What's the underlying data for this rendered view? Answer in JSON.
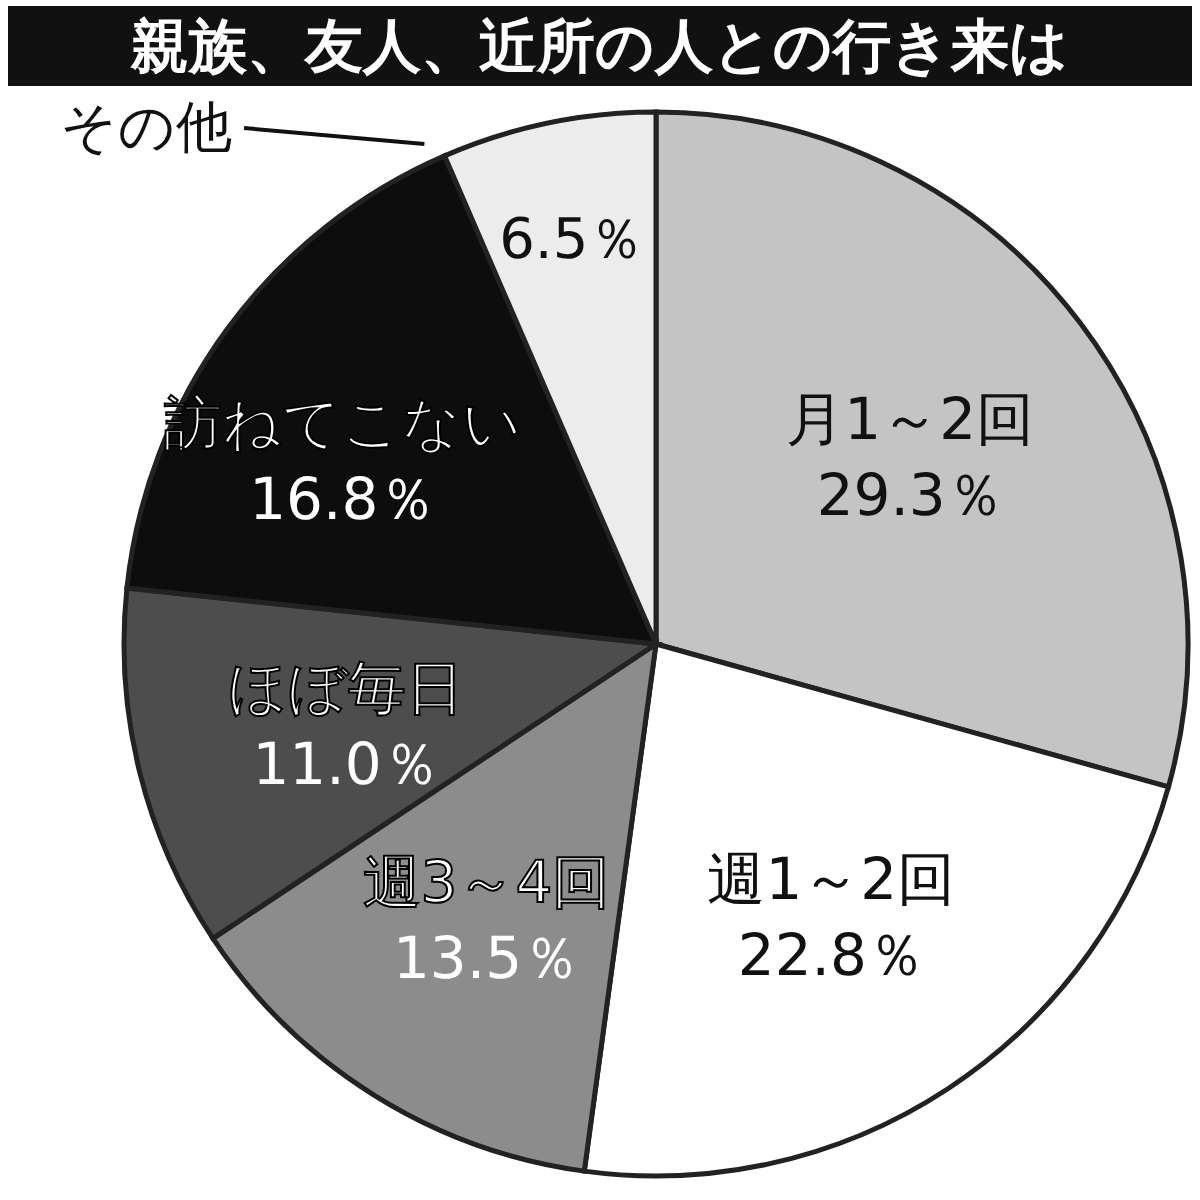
{
  "chart_data": {
    "type": "pie",
    "title": "親族、友人、近所の人との行き来は",
    "categories": [
      "月1～2回",
      "週1～2回",
      "週3～4回",
      "ほぼ毎日",
      "訪ねてこない",
      "その他"
    ],
    "values": [
      29.3,
      22.8,
      13.5,
      11.0,
      16.8,
      6.5
    ],
    "value_labels": [
      "29.3％",
      "22.8％",
      "13.5％",
      "11.0％",
      "16.8％",
      "6.5％"
    ],
    "colors": [
      "#c4c4c4",
      "#ffffff",
      "#8c8c8c",
      "#4d4d4d",
      "#0d0d0d",
      "#ececec"
    ]
  }
}
